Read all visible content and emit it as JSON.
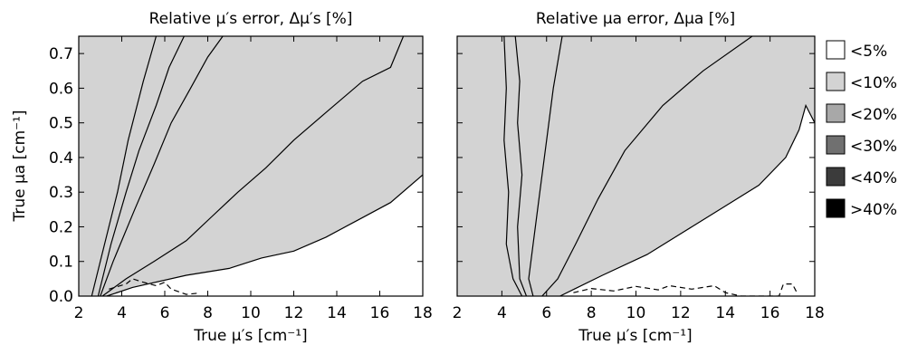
{
  "chart_data": [
    {
      "type": "contour",
      "title": "Relative μ′s error, Δμ′s [%]",
      "xlabel": "True μ′s [cm⁻¹]",
      "ylabel": "True μa [cm⁻¹]",
      "xlim": [
        2,
        18
      ],
      "ylim": [
        0,
        0.75
      ],
      "xticks": [
        "2",
        "4",
        "6",
        "8",
        "10",
        "12",
        "14",
        "16",
        "18"
      ],
      "yticks": [
        "0.0",
        "0.1",
        "0.2",
        "0.3",
        "0.4",
        "0.5",
        "0.6",
        "0.7"
      ],
      "grid": false,
      "boundaries": [
        {
          "level": ">40%",
          "points": [
            [
              2.6,
              0
            ],
            [
              3.2,
              0.15
            ],
            [
              3.8,
              0.3
            ],
            [
              4.3,
              0.45
            ],
            [
              5.0,
              0.62
            ],
            [
              5.6,
              0.75
            ]
          ]
        },
        {
          "level": "<40%",
          "points": [
            [
              2.9,
              0
            ],
            [
              3.5,
              0.15
            ],
            [
              4.2,
              0.3
            ],
            [
              4.8,
              0.42
            ],
            [
              5.6,
              0.55
            ],
            [
              6.2,
              0.66
            ],
            [
              6.9,
              0.75
            ]
          ]
        },
        {
          "level": "<30%",
          "points": [
            [
              3.0,
              0
            ],
            [
              3.6,
              0.1
            ],
            [
              4.6,
              0.25
            ],
            [
              5.5,
              0.38
            ],
            [
              6.3,
              0.5
            ],
            [
              7.2,
              0.6
            ],
            [
              8.0,
              0.69
            ],
            [
              8.7,
              0.75
            ]
          ]
        },
        {
          "level": "<20%",
          "points": [
            [
              3.1,
              0
            ],
            [
              4.2,
              0.05
            ],
            [
              5.5,
              0.1
            ],
            [
              7.0,
              0.16
            ],
            [
              8.2,
              0.23
            ],
            [
              9.4,
              0.3
            ],
            [
              10.7,
              0.37
            ],
            [
              12.0,
              0.45
            ],
            [
              13.5,
              0.53
            ],
            [
              15.2,
              0.62
            ],
            [
              16.5,
              0.66
            ],
            [
              17.1,
              0.75
            ]
          ]
        },
        {
          "level": "<10%",
          "points": [
            [
              3.3,
              0
            ],
            [
              4.5,
              0.025
            ],
            [
              7.0,
              0.06
            ],
            [
              9.0,
              0.08
            ],
            [
              10.5,
              0.11
            ],
            [
              12.0,
              0.13
            ],
            [
              13.5,
              0.17
            ],
            [
              15.0,
              0.22
            ],
            [
              16.5,
              0.27
            ],
            [
              18.0,
              0.35
            ]
          ]
        },
        {
          "level": "<5%",
          "dashed": true,
          "points": [
            [
              3.4,
              0.02
            ],
            [
              4.2,
              0.035
            ],
            [
              4.5,
              0.05
            ],
            [
              5.0,
              0.04
            ],
            [
              5.6,
              0.03
            ],
            [
              6.0,
              0.04
            ],
            [
              6.3,
              0.02
            ],
            [
              7.0,
              0.005
            ],
            [
              7.5,
              0.008
            ]
          ]
        }
      ]
    },
    {
      "type": "contour",
      "title": "Relative μa error, Δμa [%]",
      "xlabel": "True μ′s [cm⁻¹]",
      "ylabel": "",
      "xlim": [
        2,
        18
      ],
      "ylim": [
        0,
        0.75
      ],
      "xticks": [
        "2",
        "4",
        "6",
        "8",
        "10",
        "12",
        "14",
        "16",
        "18"
      ],
      "grid": false,
      "boundaries": [
        {
          "level": ">40%",
          "points": [
            [
              4.9,
              0
            ],
            [
              4.5,
              0.05
            ],
            [
              4.2,
              0.15
            ],
            [
              4.3,
              0.3
            ],
            [
              4.1,
              0.45
            ],
            [
              4.2,
              0.6
            ],
            [
              4.1,
              0.75
            ]
          ]
        },
        {
          "level": "<40%",
          "points": [
            [
              5.1,
              0
            ],
            [
              4.8,
              0.05
            ],
            [
              4.7,
              0.2
            ],
            [
              4.9,
              0.35
            ],
            [
              4.7,
              0.5
            ],
            [
              4.8,
              0.62
            ],
            [
              4.6,
              0.75
            ]
          ]
        },
        {
          "level": "<30%",
          "points": [
            [
              5.4,
              0
            ],
            [
              5.2,
              0.05
            ],
            [
              5.4,
              0.15
            ],
            [
              5.7,
              0.3
            ],
            [
              6.0,
              0.45
            ],
            [
              6.3,
              0.6
            ],
            [
              6.7,
              0.75
            ]
          ]
        },
        {
          "level": "<20%",
          "points": [
            [
              5.8,
              0
            ],
            [
              6.5,
              0.05
            ],
            [
              7.3,
              0.15
            ],
            [
              8.3,
              0.28
            ],
            [
              9.5,
              0.42
            ],
            [
              11.2,
              0.55
            ],
            [
              13.0,
              0.65
            ],
            [
              15.2,
              0.75
            ]
          ]
        },
        {
          "level": "<10%",
          "points": [
            [
              6.6,
              0
            ],
            [
              8.5,
              0.06
            ],
            [
              10.5,
              0.12
            ],
            [
              12.5,
              0.2
            ],
            [
              14.0,
              0.26
            ],
            [
              15.5,
              0.32
            ],
            [
              16.7,
              0.4
            ],
            [
              17.3,
              0.48
            ],
            [
              17.6,
              0.55
            ],
            [
              18.0,
              0.5
            ]
          ]
        },
        {
          "level": "<5%",
          "dashed": true,
          "points": [
            [
              7.2,
              0.01
            ],
            [
              8.0,
              0.022
            ],
            [
              9.0,
              0.015
            ],
            [
              10.0,
              0.028
            ],
            [
              11.0,
              0.018
            ],
            [
              11.5,
              0.03
            ],
            [
              12.5,
              0.02
            ],
            [
              13.5,
              0.03
            ],
            [
              14.0,
              0.01
            ],
            [
              14.7,
              0.0
            ],
            [
              16.4,
              0.0
            ],
            [
              16.6,
              0.035
            ],
            [
              17.0,
              0.035
            ],
            [
              17.2,
              0.01
            ]
          ]
        }
      ]
    }
  ],
  "legend": {
    "items": [
      {
        "label": "<5%",
        "color": "#ffffff"
      },
      {
        "label": "<10%",
        "color": "#d3d3d3"
      },
      {
        "label": "<20%",
        "color": "#a8a8a8"
      },
      {
        "label": "<30%",
        "color": "#707070"
      },
      {
        "label": "<40%",
        "color": "#3b3b3b"
      },
      {
        "label": ">40%",
        "color": "#000000"
      }
    ]
  }
}
